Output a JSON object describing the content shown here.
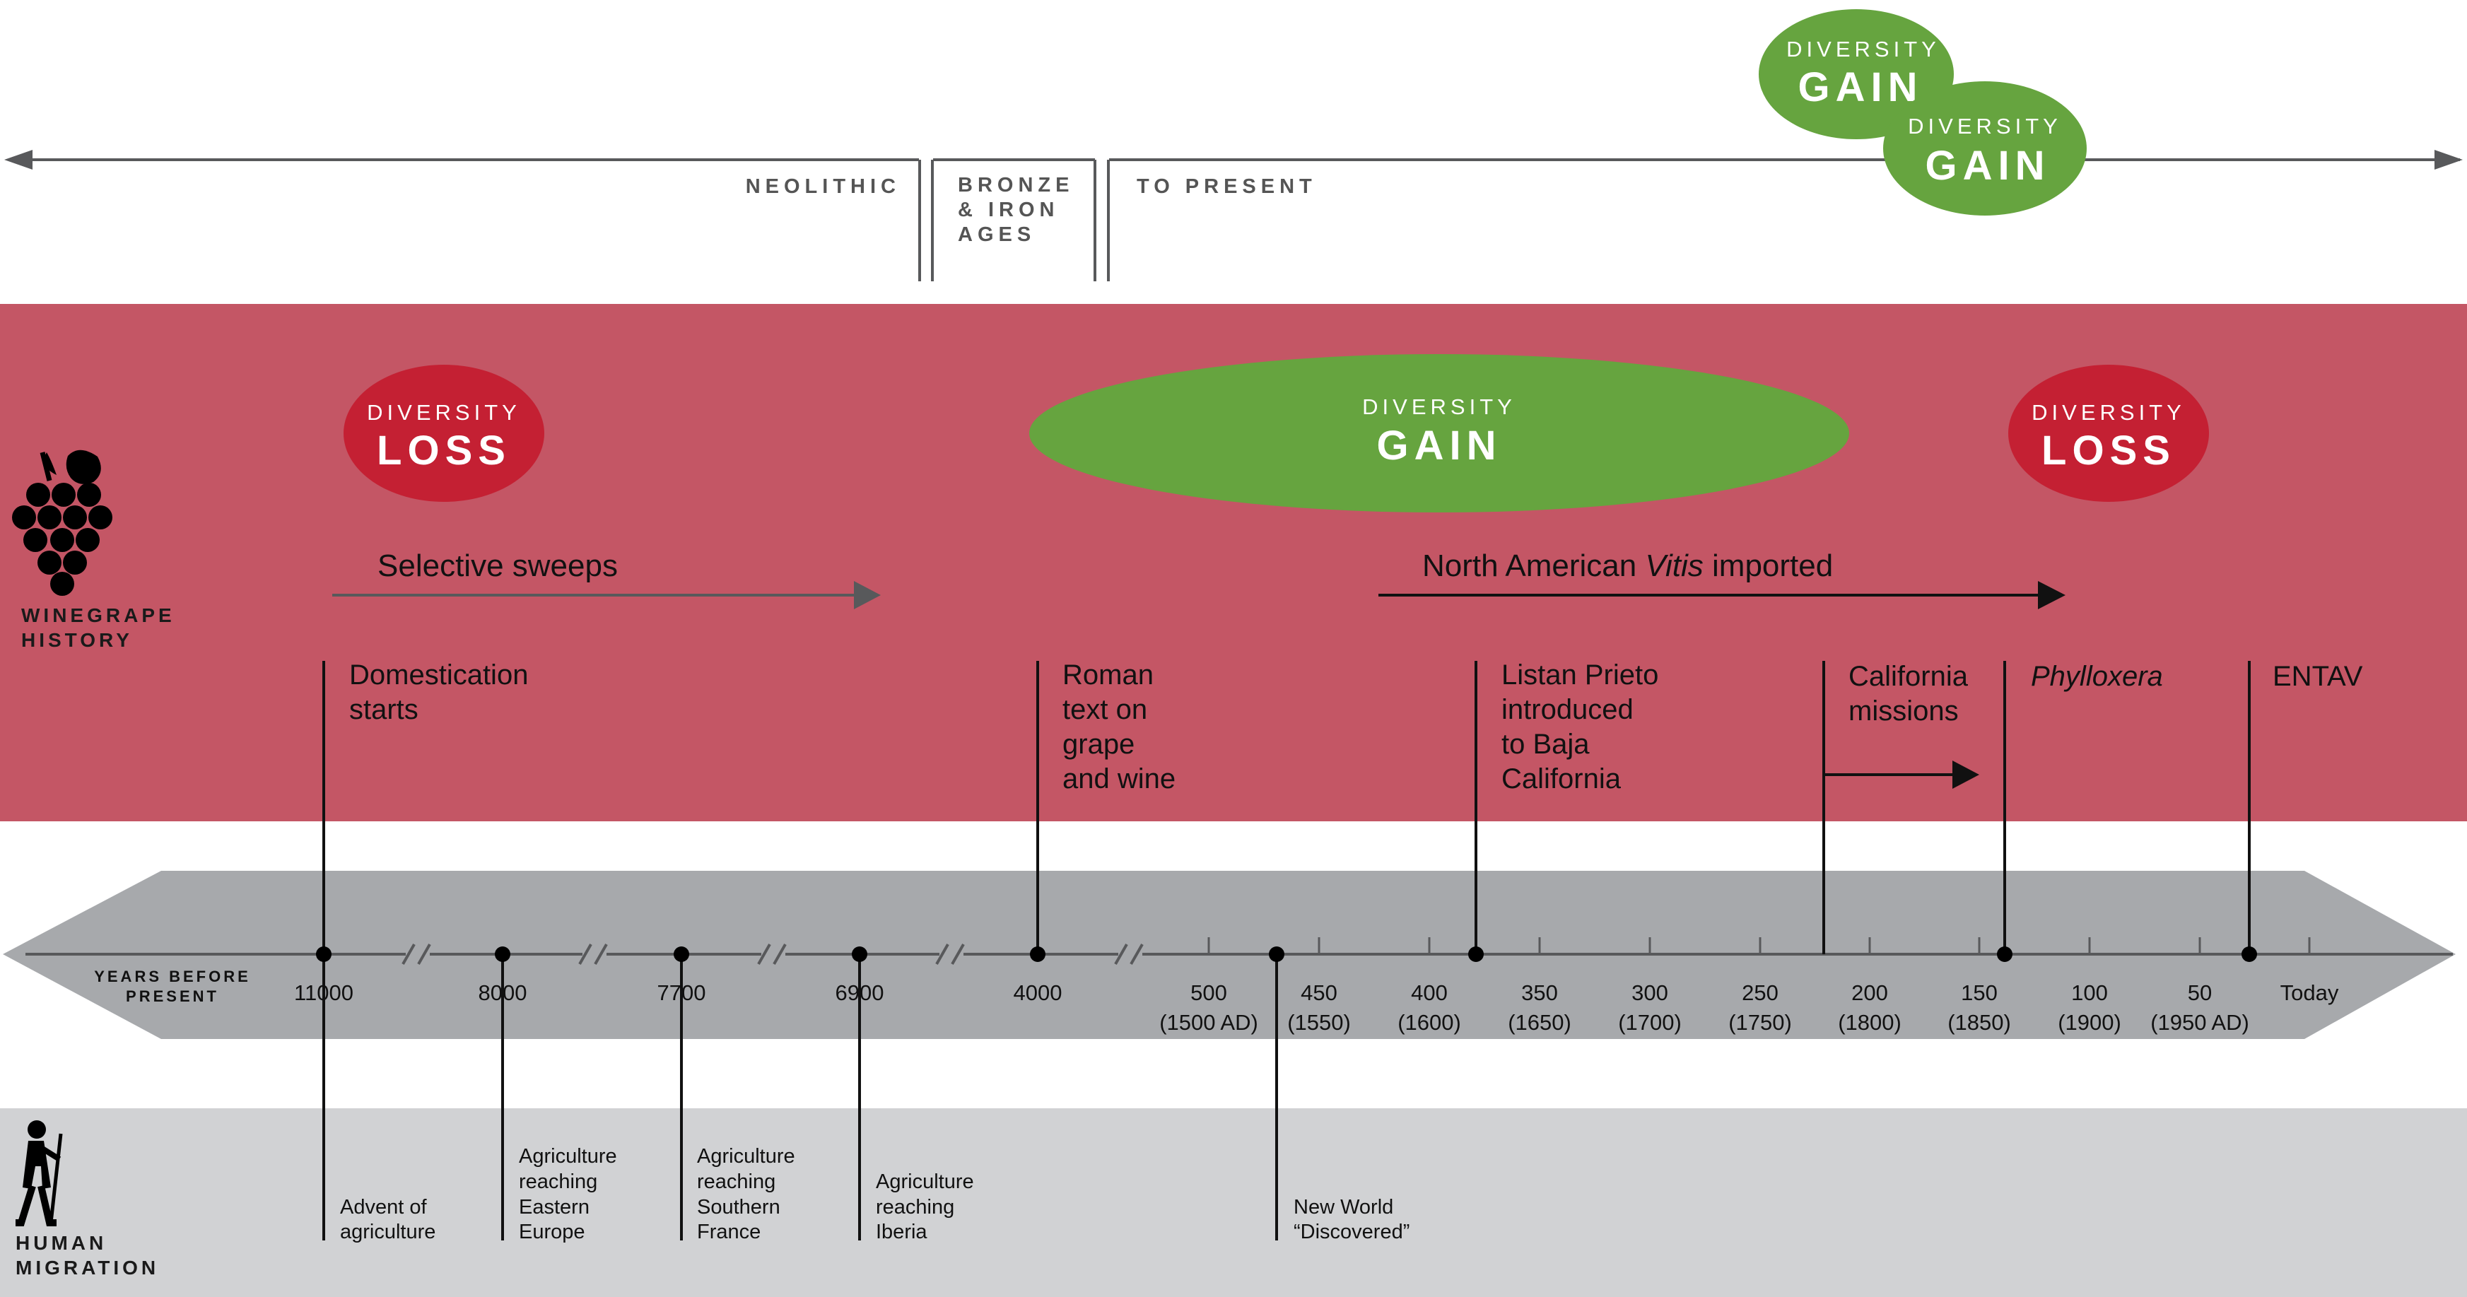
{
  "eras": {
    "neolithic": "NEOLITHIC",
    "bronze_iron": [
      "BRONZE",
      "& IRON",
      "AGES"
    ],
    "to_present": "TO PRESENT"
  },
  "diversity": {
    "word": "DIVERSITY",
    "gain": "GAIN",
    "loss": "LOSS"
  },
  "sections": {
    "winegrape": [
      "WINEGRAPE",
      "HISTORY"
    ],
    "human": [
      "HUMAN",
      "MIGRATION"
    ],
    "years_before_present": [
      "YEARS BEFORE",
      "PRESENT"
    ]
  },
  "arrows": {
    "selective_sweeps": "Selective sweeps",
    "vitis_before": "North American ",
    "vitis_italic": "Vitis",
    "vitis_after": " imported"
  },
  "events": {
    "domestication": [
      "Domestication",
      "starts"
    ],
    "roman": [
      "Roman",
      "text on",
      "grape",
      "and wine"
    ],
    "listan": [
      "Listan Prieto",
      "introduced",
      "to Baja",
      "California"
    ],
    "california": [
      "California",
      "missions"
    ],
    "phylloxera": "Phylloxera",
    "entav": "ENTAV"
  },
  "ticks": [
    {
      "label": "11000",
      "sub": ""
    },
    {
      "label": "8000",
      "sub": ""
    },
    {
      "label": "7700",
      "sub": ""
    },
    {
      "label": "6900",
      "sub": ""
    },
    {
      "label": "4000",
      "sub": ""
    },
    {
      "label": "500",
      "sub": "(1500 AD)"
    },
    {
      "label": "450",
      "sub": "(1550)"
    },
    {
      "label": "400",
      "sub": "(1600)"
    },
    {
      "label": "350",
      "sub": "(1650)"
    },
    {
      "label": "300",
      "sub": "(1700)"
    },
    {
      "label": "250",
      "sub": "(1750)"
    },
    {
      "label": "200",
      "sub": "(1800)"
    },
    {
      "label": "150",
      "sub": "(1850)"
    },
    {
      "label": "100",
      "sub": "(1900)"
    },
    {
      "label": "50",
      "sub": "(1950 AD)"
    },
    {
      "label": "Today",
      "sub": ""
    }
  ],
  "migration": {
    "advent": [
      "Advent of",
      "agriculture"
    ],
    "eastern": [
      "Agriculture",
      "reaching",
      "Eastern",
      "Europe"
    ],
    "southern": [
      "Agriculture",
      "reaching",
      "Southern",
      "France"
    ],
    "iberia": [
      "Agriculture",
      "reaching",
      "Iberia"
    ],
    "new_world": [
      "New World",
      "“Discovered”"
    ]
  },
  "colors": {
    "history_band": "#c45665",
    "loss_red": "#c42033",
    "gain_green": "#66a43f",
    "timeline_gray": "#a7a9ac",
    "migration_gray": "#d1d2d4",
    "era_line": "#58595b"
  },
  "icons": [
    "grape-icon",
    "human-icon"
  ]
}
